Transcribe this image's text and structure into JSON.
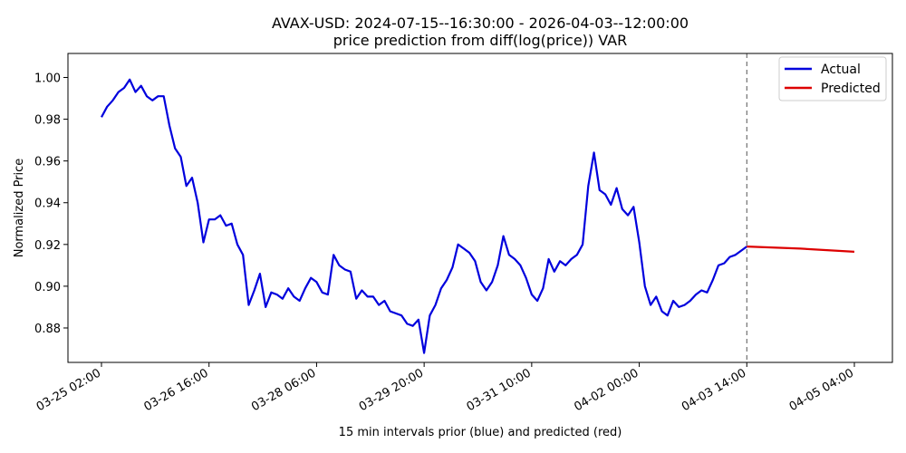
{
  "chart_data": {
    "type": "line",
    "title_line1": "AVAX-USD: 2024-07-15--16:30:00 - 2026-04-03--12:00:00",
    "title_line2": "price prediction from diff(log(price)) VAR",
    "xlabel": "15 min intervals prior (blue) and predicted (red)",
    "ylabel": "Normalized Price",
    "ylim": [
      0.8635,
      1.0115
    ],
    "y_ticks": [
      "0.88",
      "0.90",
      "0.92",
      "0.94",
      "0.96",
      "0.98",
      "1.00"
    ],
    "x_ticks": [
      "03-25 02:00",
      "03-26 16:00",
      "03-28 06:00",
      "03-29 20:00",
      "03-31 10:00",
      "04-02 00:00",
      "04-03 14:00",
      "04-05 04:00"
    ],
    "legend_position": "top-right",
    "prediction_start": "04-03 14:00",
    "series": [
      {
        "name": "Actual",
        "color": "#0000dd",
        "points": [
          [
            "03-25 02:00",
            0.981
          ],
          [
            "03-25 04:00",
            0.986
          ],
          [
            "03-25 06:00",
            0.989
          ],
          [
            "03-25 08:00",
            0.993
          ],
          [
            "03-25 10:00",
            0.995
          ],
          [
            "03-25 12:00",
            0.999
          ],
          [
            "03-25 14:00",
            0.993
          ],
          [
            "03-25 16:00",
            0.996
          ],
          [
            "03-25 18:00",
            0.991
          ],
          [
            "03-25 20:00",
            0.989
          ],
          [
            "03-25 22:00",
            0.991
          ],
          [
            "03-26 00:00",
            0.991
          ],
          [
            "03-26 02:00",
            0.977
          ],
          [
            "03-26 04:00",
            0.966
          ],
          [
            "03-26 06:00",
            0.962
          ],
          [
            "03-26 08:00",
            0.948
          ],
          [
            "03-26 10:00",
            0.952
          ],
          [
            "03-26 12:00",
            0.94
          ],
          [
            "03-26 14:00",
            0.921
          ],
          [
            "03-26 16:00",
            0.932
          ],
          [
            "03-26 18:00",
            0.932
          ],
          [
            "03-26 20:00",
            0.934
          ],
          [
            "03-26 22:00",
            0.929
          ],
          [
            "03-27 00:00",
            0.93
          ],
          [
            "03-27 02:00",
            0.92
          ],
          [
            "03-27 04:00",
            0.915
          ],
          [
            "03-27 06:00",
            0.891
          ],
          [
            "03-27 08:00",
            0.898
          ],
          [
            "03-27 10:00",
            0.906
          ],
          [
            "03-27 12:00",
            0.89
          ],
          [
            "03-27 14:00",
            0.897
          ],
          [
            "03-27 16:00",
            0.896
          ],
          [
            "03-27 18:00",
            0.894
          ],
          [
            "03-27 20:00",
            0.899
          ],
          [
            "03-27 22:00",
            0.895
          ],
          [
            "03-28 00:00",
            0.893
          ],
          [
            "03-28 02:00",
            0.899
          ],
          [
            "03-28 04:00",
            0.904
          ],
          [
            "03-28 06:00",
            0.902
          ],
          [
            "03-28 08:00",
            0.897
          ],
          [
            "03-28 10:00",
            0.896
          ],
          [
            "03-28 12:00",
            0.915
          ],
          [
            "03-28 14:00",
            0.91
          ],
          [
            "03-28 16:00",
            0.908
          ],
          [
            "03-28 18:00",
            0.907
          ],
          [
            "03-28 20:00",
            0.894
          ],
          [
            "03-28 22:00",
            0.898
          ],
          [
            "03-29 00:00",
            0.895
          ],
          [
            "03-29 02:00",
            0.895
          ],
          [
            "03-29 04:00",
            0.891
          ],
          [
            "03-29 06:00",
            0.893
          ],
          [
            "03-29 08:00",
            0.888
          ],
          [
            "03-29 10:00",
            0.887
          ],
          [
            "03-29 12:00",
            0.886
          ],
          [
            "03-29 14:00",
            0.882
          ],
          [
            "03-29 16:00",
            0.881
          ],
          [
            "03-29 18:00",
            0.884
          ],
          [
            "03-29 20:00",
            0.868
          ],
          [
            "03-29 22:00",
            0.886
          ],
          [
            "03-30 00:00",
            0.891
          ],
          [
            "03-30 02:00",
            0.899
          ],
          [
            "03-30 04:00",
            0.903
          ],
          [
            "03-30 06:00",
            0.909
          ],
          [
            "03-30 08:00",
            0.92
          ],
          [
            "03-30 10:00",
            0.918
          ],
          [
            "03-30 12:00",
            0.916
          ],
          [
            "03-30 14:00",
            0.912
          ],
          [
            "03-30 16:00",
            0.902
          ],
          [
            "03-30 18:00",
            0.898
          ],
          [
            "03-30 20:00",
            0.902
          ],
          [
            "03-30 22:00",
            0.91
          ],
          [
            "03-31 00:00",
            0.924
          ],
          [
            "03-31 02:00",
            0.915
          ],
          [
            "03-31 04:00",
            0.913
          ],
          [
            "03-31 06:00",
            0.91
          ],
          [
            "03-31 08:00",
            0.904
          ],
          [
            "03-31 10:00",
            0.896
          ],
          [
            "03-31 12:00",
            0.893
          ],
          [
            "03-31 14:00",
            0.899
          ],
          [
            "03-31 16:00",
            0.913
          ],
          [
            "03-31 18:00",
            0.907
          ],
          [
            "03-31 20:00",
            0.912
          ],
          [
            "03-31 22:00",
            0.91
          ],
          [
            "04-01 00:00",
            0.913
          ],
          [
            "04-01 02:00",
            0.915
          ],
          [
            "04-01 04:00",
            0.92
          ],
          [
            "04-01 06:00",
            0.948
          ],
          [
            "04-01 08:00",
            0.964
          ],
          [
            "04-01 10:00",
            0.946
          ],
          [
            "04-01 12:00",
            0.944
          ],
          [
            "04-01 14:00",
            0.939
          ],
          [
            "04-01 16:00",
            0.947
          ],
          [
            "04-01 18:00",
            0.937
          ],
          [
            "04-01 20:00",
            0.934
          ],
          [
            "04-01 22:00",
            0.938
          ],
          [
            "04-02 00:00",
            0.921
          ],
          [
            "04-02 02:00",
            0.9
          ],
          [
            "04-02 04:00",
            0.891
          ],
          [
            "04-02 06:00",
            0.895
          ],
          [
            "04-02 08:00",
            0.888
          ],
          [
            "04-02 10:00",
            0.886
          ],
          [
            "04-02 12:00",
            0.893
          ],
          [
            "04-02 14:00",
            0.89
          ],
          [
            "04-02 16:00",
            0.891
          ],
          [
            "04-02 18:00",
            0.893
          ],
          [
            "04-02 20:00",
            0.896
          ],
          [
            "04-02 22:00",
            0.898
          ],
          [
            "04-03 00:00",
            0.897
          ],
          [
            "04-03 02:00",
            0.903
          ],
          [
            "04-03 04:00",
            0.91
          ],
          [
            "04-03 06:00",
            0.911
          ],
          [
            "04-03 08:00",
            0.914
          ],
          [
            "04-03 10:00",
            0.915
          ],
          [
            "04-03 12:00",
            0.917
          ],
          [
            "04-03 14:00",
            0.919
          ]
        ]
      },
      {
        "name": "Predicted",
        "color": "#dd0000",
        "points": [
          [
            "04-03 14:00",
            0.919
          ],
          [
            "04-04 09:00",
            0.918
          ],
          [
            "04-05 04:00",
            0.9165
          ]
        ]
      }
    ]
  }
}
